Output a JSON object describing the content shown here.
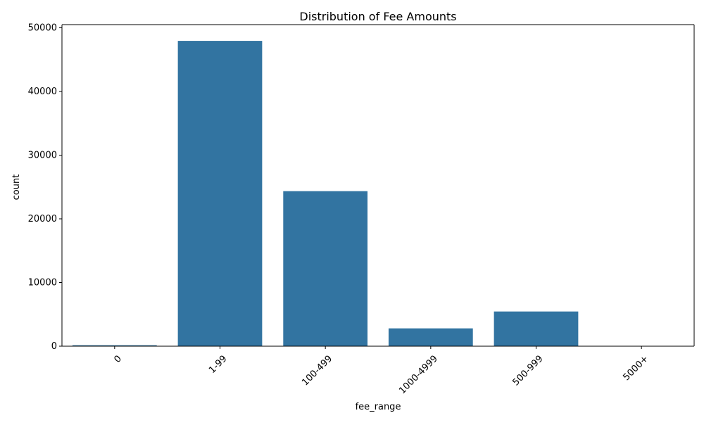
{
  "chart_data": {
    "type": "bar",
    "title": "Distribution of Fee Amounts",
    "xlabel": "fee_range",
    "ylabel": "count",
    "categories": [
      "0",
      "1-99",
      "100-499",
      "1000-4999",
      "500-999",
      "5000+"
    ],
    "values": [
      150,
      47950,
      24350,
      2800,
      5450,
      20
    ],
    "ylim": [
      0,
      50500
    ],
    "yticks": [
      0,
      10000,
      20000,
      30000,
      40000,
      50000
    ],
    "grid": false,
    "legend": "none",
    "bar_color": "#3274a1",
    "xtick_rotation": 45
  }
}
